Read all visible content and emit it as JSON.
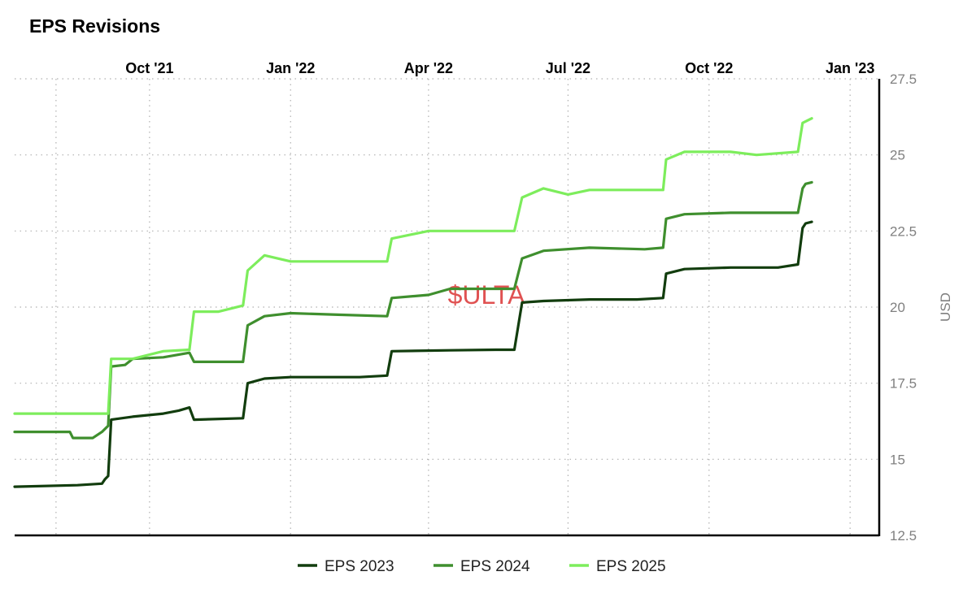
{
  "chart_data": {
    "type": "line",
    "title": "EPS Revisions",
    "watermark": "$ULTA",
    "ylabel": "USD",
    "ylim": [
      12.5,
      27.5
    ],
    "yticks": [
      12.5,
      15,
      17.5,
      20,
      22.5,
      25,
      27.5
    ],
    "ytick_labels": [
      "12.5",
      "15",
      "17.5",
      "20",
      "22.5",
      "25",
      "27.5"
    ],
    "xlim": [
      "2021-07-05",
      "2023-01-20"
    ],
    "xticks": [
      {
        "label": "Oct '21",
        "date": "2021-10-01"
      },
      {
        "label": "Jan '22",
        "date": "2022-01-01"
      },
      {
        "label": "Apr '22",
        "date": "2022-04-01"
      },
      {
        "label": "Jul '22",
        "date": "2022-07-01"
      },
      {
        "label": "Oct '22",
        "date": "2022-10-01"
      },
      {
        "label": "Jan '23",
        "date": "2023-01-01"
      }
    ],
    "grid": true,
    "legend": "bottom-center",
    "series": [
      {
        "name": "EPS 2023",
        "color": "#123d0e",
        "points": [
          [
            "2021-07-05",
            14.1
          ],
          [
            "2021-08-15",
            14.15
          ],
          [
            "2021-08-31",
            14.2
          ],
          [
            "2021-09-02",
            14.35
          ],
          [
            "2021-09-04",
            14.45
          ],
          [
            "2021-09-06",
            16.3
          ],
          [
            "2021-09-20",
            16.4
          ],
          [
            "2021-10-10",
            16.5
          ],
          [
            "2021-10-20",
            16.6
          ],
          [
            "2021-10-27",
            16.7
          ],
          [
            "2021-10-30",
            16.3
          ],
          [
            "2021-12-01",
            16.35
          ],
          [
            "2021-12-04",
            17.5
          ],
          [
            "2021-12-15",
            17.65
          ],
          [
            "2022-01-01",
            17.7
          ],
          [
            "2022-02-15",
            17.7
          ],
          [
            "2022-03-05",
            17.75
          ],
          [
            "2022-03-08",
            18.55
          ],
          [
            "2022-04-15",
            18.58
          ],
          [
            "2022-05-15",
            18.6
          ],
          [
            "2022-05-27",
            18.6
          ],
          [
            "2022-06-01",
            20.15
          ],
          [
            "2022-06-15",
            20.2
          ],
          [
            "2022-07-15",
            20.25
          ],
          [
            "2022-08-15",
            20.25
          ],
          [
            "2022-09-01",
            20.3
          ],
          [
            "2022-09-03",
            21.1
          ],
          [
            "2022-09-15",
            21.25
          ],
          [
            "2022-10-15",
            21.3
          ],
          [
            "2022-11-15",
            21.3
          ],
          [
            "2022-11-28",
            21.4
          ],
          [
            "2022-12-01",
            22.6
          ],
          [
            "2022-12-03",
            22.75
          ],
          [
            "2022-12-07",
            22.8
          ]
        ]
      },
      {
        "name": "EPS 2024",
        "color": "#3f8f2e",
        "points": [
          [
            "2021-07-05",
            15.9
          ],
          [
            "2021-08-10",
            15.9
          ],
          [
            "2021-08-12",
            15.7
          ],
          [
            "2021-08-25",
            15.7
          ],
          [
            "2021-08-31",
            15.9
          ],
          [
            "2021-09-04",
            16.1
          ],
          [
            "2021-09-06",
            18.05
          ],
          [
            "2021-09-15",
            18.1
          ],
          [
            "2021-09-20",
            18.3
          ],
          [
            "2021-10-10",
            18.35
          ],
          [
            "2021-10-27",
            18.5
          ],
          [
            "2021-10-30",
            18.2
          ],
          [
            "2021-12-01",
            18.2
          ],
          [
            "2021-12-04",
            19.4
          ],
          [
            "2021-12-15",
            19.7
          ],
          [
            "2022-01-01",
            19.8
          ],
          [
            "2022-02-01",
            19.75
          ],
          [
            "2022-03-05",
            19.7
          ],
          [
            "2022-03-08",
            20.3
          ],
          [
            "2022-04-01",
            20.4
          ],
          [
            "2022-04-15",
            20.6
          ],
          [
            "2022-05-27",
            20.6
          ],
          [
            "2022-06-01",
            21.6
          ],
          [
            "2022-06-15",
            21.85
          ],
          [
            "2022-07-15",
            21.95
          ],
          [
            "2022-08-20",
            21.9
          ],
          [
            "2022-09-01",
            21.95
          ],
          [
            "2022-09-03",
            22.9
          ],
          [
            "2022-09-15",
            23.05
          ],
          [
            "2022-10-15",
            23.1
          ],
          [
            "2022-11-01",
            23.1
          ],
          [
            "2022-11-28",
            23.1
          ],
          [
            "2022-12-01",
            23.9
          ],
          [
            "2022-12-03",
            24.05
          ],
          [
            "2022-12-07",
            24.1
          ]
        ]
      },
      {
        "name": "EPS 2025",
        "color": "#7ded5c",
        "points": [
          [
            "2021-07-05",
            16.5
          ],
          [
            "2021-09-04",
            16.5
          ],
          [
            "2021-09-06",
            18.3
          ],
          [
            "2021-09-20",
            18.3
          ],
          [
            "2021-10-10",
            18.55
          ],
          [
            "2021-10-27",
            18.6
          ],
          [
            "2021-10-30",
            19.85
          ],
          [
            "2021-11-15",
            19.85
          ],
          [
            "2021-12-01",
            20.05
          ],
          [
            "2021-12-04",
            21.2
          ],
          [
            "2021-12-15",
            21.7
          ],
          [
            "2022-01-01",
            21.5
          ],
          [
            "2022-02-01",
            21.5
          ],
          [
            "2022-03-05",
            21.5
          ],
          [
            "2022-03-08",
            22.25
          ],
          [
            "2022-04-01",
            22.5
          ],
          [
            "2022-04-15",
            22.5
          ],
          [
            "2022-05-27",
            22.5
          ],
          [
            "2022-06-01",
            23.6
          ],
          [
            "2022-06-15",
            23.9
          ],
          [
            "2022-07-01",
            23.7
          ],
          [
            "2022-07-15",
            23.85
          ],
          [
            "2022-08-20",
            23.85
          ],
          [
            "2022-09-01",
            23.85
          ],
          [
            "2022-09-03",
            24.85
          ],
          [
            "2022-09-15",
            25.1
          ],
          [
            "2022-10-15",
            25.1
          ],
          [
            "2022-11-01",
            25.0
          ],
          [
            "2022-11-28",
            25.1
          ],
          [
            "2022-12-01",
            26.05
          ],
          [
            "2022-12-07",
            26.2
          ]
        ]
      }
    ]
  }
}
